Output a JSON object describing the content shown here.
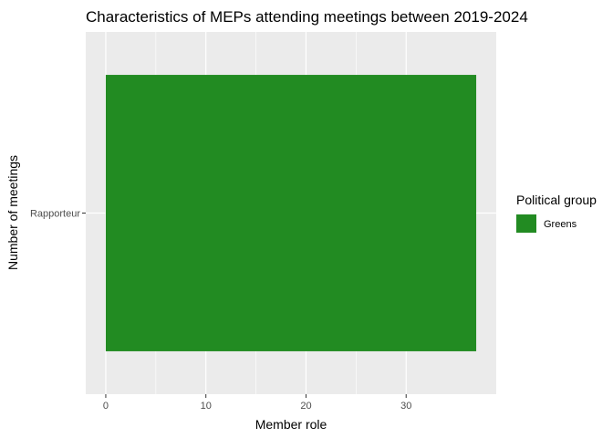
{
  "chart_data": {
    "type": "bar",
    "orientation": "horizontal",
    "title": "Characteristics of MEPs attending meetings between 2019-2024",
    "xlabel": "Member role",
    "ylabel": "Number of meetings",
    "categories": [
      "Rapporteur"
    ],
    "series": [
      {
        "name": "Greens",
        "values": [
          37
        ],
        "color": "#228B22"
      }
    ],
    "xlim": [
      -2,
      39
    ],
    "x_ticks": [
      0,
      10,
      20,
      30
    ],
    "legend": {
      "title": "Political group",
      "position": "right",
      "items": [
        {
          "label": "Greens",
          "color": "#228B22"
        }
      ]
    },
    "grid": true,
    "panel_background": "#EBEBEB"
  }
}
